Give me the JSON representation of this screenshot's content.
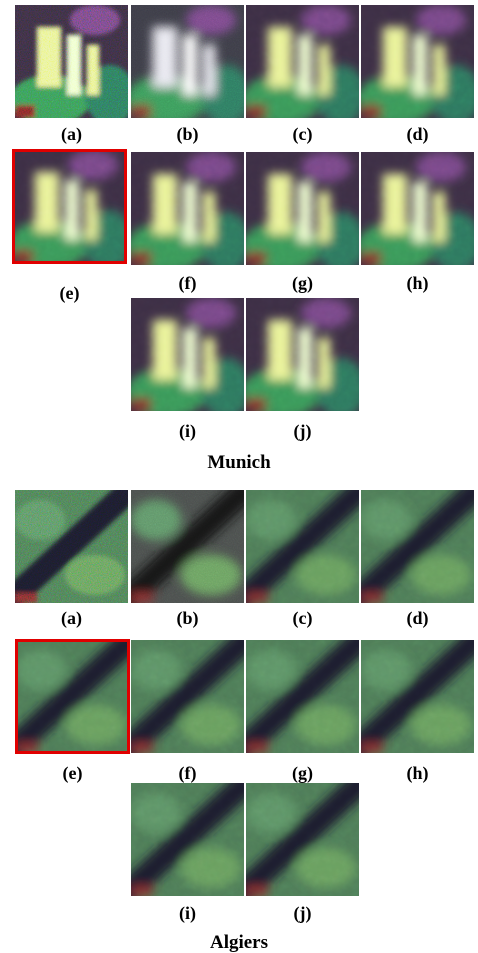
{
  "figures": [
    {
      "caption": "Munich",
      "panels": [
        {
          "label": "(a)"
        },
        {
          "label": "(b)"
        },
        {
          "label": "(c)"
        },
        {
          "label": "(d)"
        },
        {
          "label": "(e)"
        },
        {
          "label": "(f)"
        },
        {
          "label": "(g)"
        },
        {
          "label": "(h)"
        },
        {
          "label": "(i)"
        },
        {
          "label": "(j)"
        }
      ]
    },
    {
      "caption": "Algiers",
      "panels": [
        {
          "label": "(a)"
        },
        {
          "label": "(b)"
        },
        {
          "label": "(c)"
        },
        {
          "label": "(d)"
        },
        {
          "label": "(e)"
        },
        {
          "label": "(f)"
        },
        {
          "label": "(g)"
        },
        {
          "label": "(h)"
        },
        {
          "label": "(i)"
        },
        {
          "label": "(j)"
        }
      ]
    }
  ]
}
